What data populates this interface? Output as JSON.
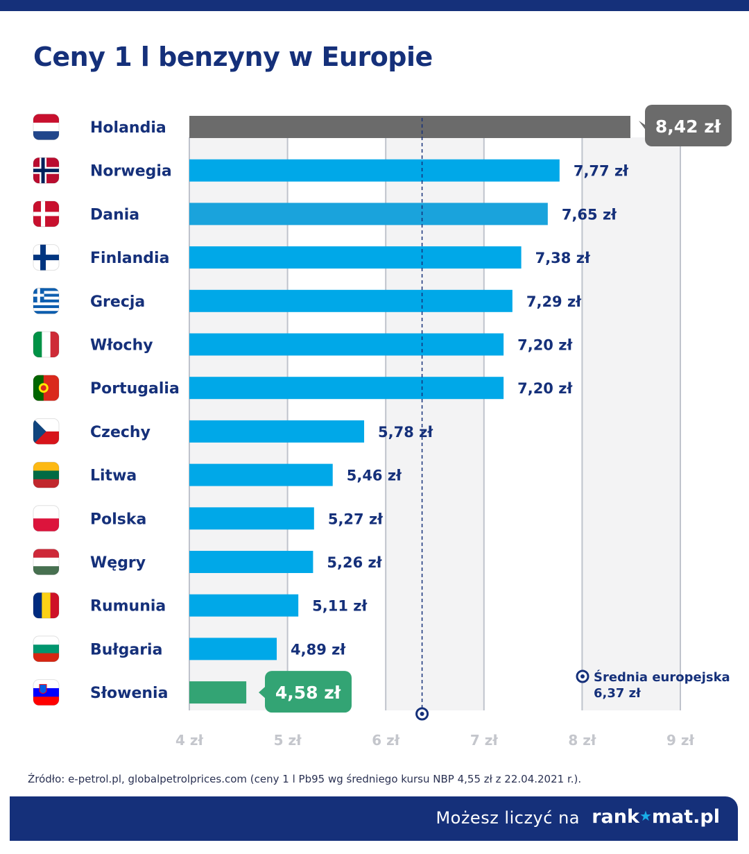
{
  "title": "Ceny 1 l benzyny w Europie",
  "currency_suffix": " zł",
  "source": "Źródło: e-petrol.pl, globalpetrolprices.com (ceny 1 l Pb95 wg średniego kursu NBP 4,55 zł z 22.04.2021 r.).",
  "footer": {
    "tagline": "Możesz liczyć na",
    "brand_before": "rank",
    "brand_star": "★",
    "brand_after": "mat.pl"
  },
  "colors": {
    "highest": "#6b6b6b",
    "normal": "#00a8e8",
    "alt": "#1aa3dc",
    "lowest": "#33a474",
    "label": "#15307a",
    "axis": "#bfc3cc"
  },
  "chart_data": {
    "type": "bar",
    "orientation": "horizontal",
    "categories": [
      "Holandia",
      "Norwegia",
      "Dania",
      "Finlandia",
      "Grecja",
      "Włochy",
      "Portugalia",
      "Czechy",
      "Litwa",
      "Polska",
      "Węgry",
      "Rumunia",
      "Bułgaria",
      "Słowenia"
    ],
    "values": [
      8.42,
      7.77,
      7.65,
      7.38,
      7.29,
      7.2,
      7.2,
      5.78,
      5.46,
      5.27,
      5.26,
      5.11,
      4.89,
      4.58
    ],
    "value_labels": [
      "8,42 zł",
      "7,77 zł",
      "7,65 zł",
      "7,38 zł",
      "7,29 zł",
      "7,20 zł",
      "7,20 zł",
      "5,78 zł",
      "5,46 zł",
      "5,27 zł",
      "5,26 zł",
      "5,11 zł",
      "4,89 zł",
      "4,58 zł"
    ],
    "xlim": [
      4,
      9
    ],
    "ticks": [
      4,
      5,
      6,
      7,
      8,
      9
    ],
    "tick_labels": [
      "4 zł",
      "5 zł",
      "6 zł",
      "7 zł",
      "8 zł",
      "9 zł"
    ],
    "average": {
      "value": 6.37,
      "label": "Średnia europejska",
      "value_label": "6,37 zł"
    },
    "highlight": {
      "highest_index": 0,
      "lowest_index": 13
    },
    "flags": [
      "nl",
      "no",
      "dk",
      "fi",
      "gr",
      "it",
      "pt",
      "cz",
      "lt",
      "pl",
      "hu",
      "ro",
      "bg",
      "si"
    ],
    "grid": true
  }
}
